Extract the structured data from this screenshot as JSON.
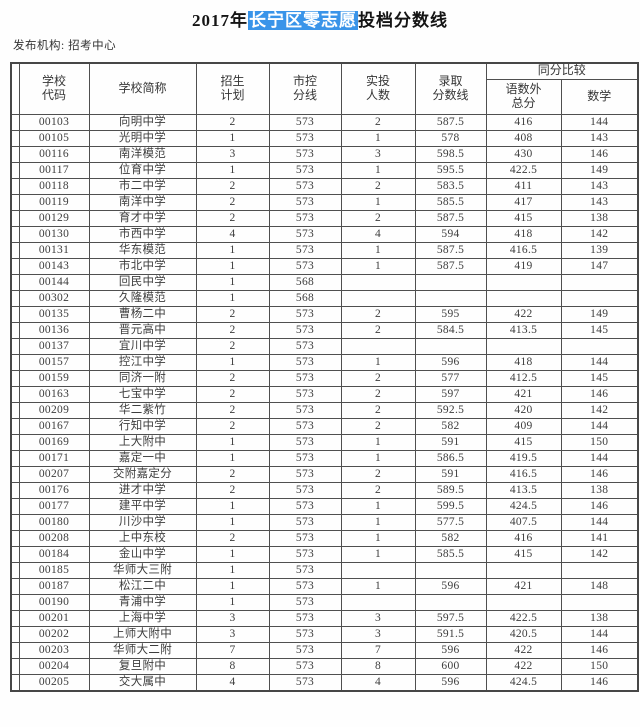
{
  "title": {
    "prefix": "2017年",
    "highlight": "长宁区零志愿",
    "suffix": "投档分数线"
  },
  "publisher": "发布机构: 招考中心",
  "colors": {
    "highlight_bg": "#3994e9",
    "highlight_text": "#ffffff",
    "table_border": "#4f4f4f",
    "text": "#3d3d3d"
  },
  "table": {
    "headers": {
      "blank": "",
      "code": "学校\n代码",
      "name": "学校简称",
      "plan": "招生\n计划",
      "control": "市控\n分线",
      "actual": "实投\n人数",
      "admit": "录取\n分数线",
      "compare": "同分比较",
      "chinese_total": "语数外\n总分",
      "math": "数学"
    },
    "rows": [
      [
        "00103",
        "向明中学",
        "2",
        "573",
        "2",
        "587.5",
        "416",
        "144"
      ],
      [
        "00105",
        "光明中学",
        "1",
        "573",
        "1",
        "578",
        "408",
        "143"
      ],
      [
        "00116",
        "南洋模范",
        "3",
        "573",
        "3",
        "598.5",
        "430",
        "146"
      ],
      [
        "00117",
        "位育中学",
        "1",
        "573",
        "1",
        "595.5",
        "422.5",
        "149"
      ],
      [
        "00118",
        "市二中学",
        "2",
        "573",
        "2",
        "583.5",
        "411",
        "143"
      ],
      [
        "00119",
        "南洋中学",
        "2",
        "573",
        "1",
        "585.5",
        "417",
        "143"
      ],
      [
        "00129",
        "育才中学",
        "2",
        "573",
        "2",
        "587.5",
        "415",
        "138"
      ],
      [
        "00130",
        "市西中学",
        "4",
        "573",
        "4",
        "594",
        "418",
        "142"
      ],
      [
        "00131",
        "华东模范",
        "1",
        "573",
        "1",
        "587.5",
        "416.5",
        "139"
      ],
      [
        "00143",
        "市北中学",
        "1",
        "573",
        "1",
        "587.5",
        "419",
        "147"
      ],
      [
        "00144",
        "回民中学",
        "1",
        "568",
        "",
        "",
        "",
        ""
      ],
      [
        "00302",
        "久隆模范",
        "1",
        "568",
        "",
        "",
        "",
        ""
      ],
      [
        "00135",
        "曹杨二中",
        "2",
        "573",
        "2",
        "595",
        "422",
        "149"
      ],
      [
        "00136",
        "晋元高中",
        "2",
        "573",
        "2",
        "584.5",
        "413.5",
        "145"
      ],
      [
        "00137",
        "宜川中学",
        "2",
        "573",
        "",
        "",
        "",
        ""
      ],
      [
        "00157",
        "控江中学",
        "1",
        "573",
        "1",
        "596",
        "418",
        "144"
      ],
      [
        "00159",
        "同济一附",
        "2",
        "573",
        "2",
        "577",
        "412.5",
        "145"
      ],
      [
        "00163",
        "七宝中学",
        "2",
        "573",
        "2",
        "597",
        "421",
        "146"
      ],
      [
        "00209",
        "华二紫竹",
        "2",
        "573",
        "2",
        "592.5",
        "420",
        "142"
      ],
      [
        "00167",
        "行知中学",
        "2",
        "573",
        "2",
        "582",
        "409",
        "144"
      ],
      [
        "00169",
        "上大附中",
        "1",
        "573",
        "1",
        "591",
        "415",
        "150"
      ],
      [
        "00171",
        "嘉定一中",
        "1",
        "573",
        "1",
        "586.5",
        "419.5",
        "144"
      ],
      [
        "00207",
        "交附嘉定分",
        "2",
        "573",
        "2",
        "591",
        "416.5",
        "146"
      ],
      [
        "00176",
        "进才中学",
        "2",
        "573",
        "2",
        "589.5",
        "413.5",
        "138"
      ],
      [
        "00177",
        "建平中学",
        "1",
        "573",
        "1",
        "599.5",
        "424.5",
        "146"
      ],
      [
        "00180",
        "川沙中学",
        "1",
        "573",
        "1",
        "577.5",
        "407.5",
        "144"
      ],
      [
        "00208",
        "上中东校",
        "2",
        "573",
        "1",
        "582",
        "416",
        "141"
      ],
      [
        "00184",
        "金山中学",
        "1",
        "573",
        "1",
        "585.5",
        "415",
        "142"
      ],
      [
        "00185",
        "华师大三附",
        "1",
        "573",
        "",
        "",
        "",
        ""
      ],
      [
        "00187",
        "松江二中",
        "1",
        "573",
        "1",
        "596",
        "421",
        "148"
      ],
      [
        "00190",
        "青浦中学",
        "1",
        "573",
        "",
        "",
        "",
        ""
      ],
      [
        "00201",
        "上海中学",
        "3",
        "573",
        "3",
        "597.5",
        "422.5",
        "138"
      ],
      [
        "00202",
        "上师大附中",
        "3",
        "573",
        "3",
        "591.5",
        "420.5",
        "144"
      ],
      [
        "00203",
        "华师大二附",
        "7",
        "573",
        "7",
        "596",
        "422",
        "146"
      ],
      [
        "00204",
        "复旦附中",
        "8",
        "573",
        "8",
        "600",
        "422",
        "150"
      ],
      [
        "00205",
        "交大属中",
        "4",
        "573",
        "4",
        "596",
        "424.5",
        "146"
      ]
    ]
  }
}
